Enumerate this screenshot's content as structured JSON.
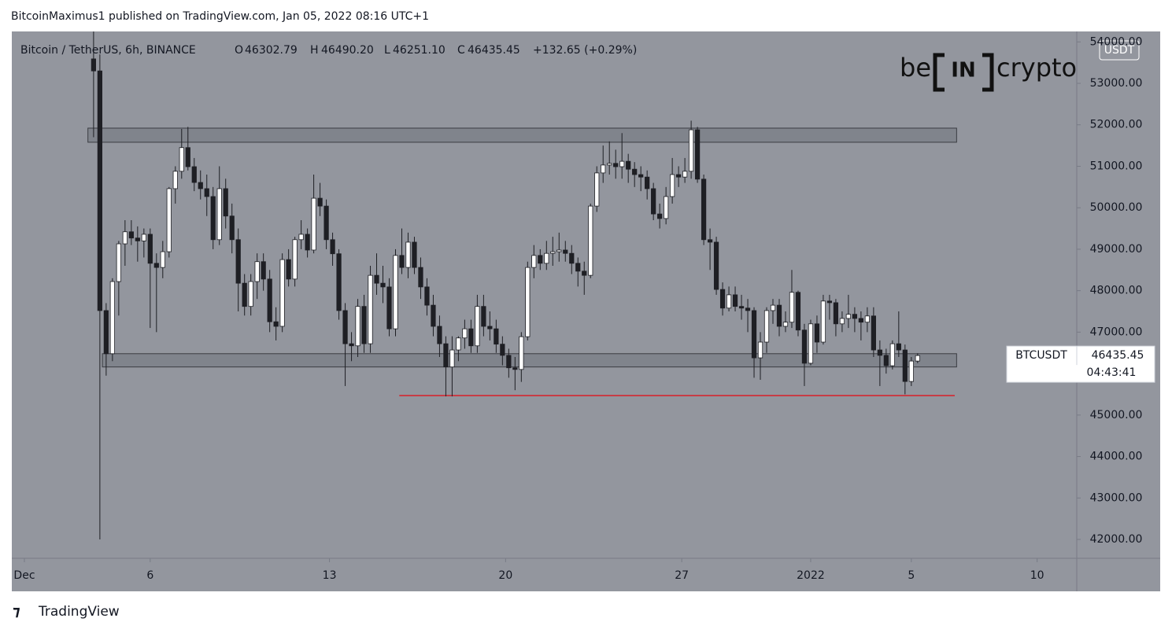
{
  "header": {
    "publisher": "BitcoinMaximus1 published on TradingView.com, Jan 05, 2022 08:16 UTC+1"
  },
  "footer": {
    "brand": "TradingView"
  },
  "logo": {
    "left": "be",
    "middle": "IN",
    "right": "crypto"
  },
  "chart_data": {
    "type": "candlestick",
    "symbol": "Bitcoin / TetherUS, 6h, BINANCE",
    "legend": {
      "o_key": "O",
      "o": "46302.79",
      "h_key": "H",
      "h": "46490.20",
      "l_key": "L",
      "l": "46251.10",
      "c_key": "C",
      "c": "46435.45",
      "change": "+132.65 (+0.29%)"
    },
    "currency": "USDT",
    "price_tag": {
      "ticker": "BTCUSDT",
      "price": "46435.45",
      "countdown": "04:43:41"
    },
    "up_color": "#ffffff",
    "down_color": "#1e1f24",
    "wick_color": "#1e1f24",
    "ylim": [
      41545,
      54252
    ],
    "yticks": [
      {
        "value": 42000,
        "label": "42000.00"
      },
      {
        "value": 43000,
        "label": "43000.00"
      },
      {
        "value": 44000,
        "label": "44000.00"
      },
      {
        "value": 45000,
        "label": "45000.00"
      },
      {
        "value": 46000,
        "label": "46000.00"
      },
      {
        "value": 47000,
        "label": "47000.00"
      },
      {
        "value": 48000,
        "label": "48000.00"
      },
      {
        "value": 49000,
        "label": "49000.00"
      },
      {
        "value": 50000,
        "label": "50000.00"
      },
      {
        "value": 51000,
        "label": "51000.00"
      },
      {
        "value": 52000,
        "label": "52000.00"
      },
      {
        "value": 53000,
        "label": "53000.00"
      },
      {
        "value": 54000,
        "label": "54000.00"
      }
    ],
    "xlim": [
      -13,
      156.3
    ],
    "xticks": [
      {
        "value": -11,
        "label": "Dec"
      },
      {
        "value": 9,
        "label": "6"
      },
      {
        "value": 37.5,
        "label": "13"
      },
      {
        "value": 65.5,
        "label": "20"
      },
      {
        "value": 93.5,
        "label": "27"
      },
      {
        "value": 114,
        "label": "2022"
      },
      {
        "value": 130,
        "label": "5"
      },
      {
        "value": 150,
        "label": "10"
      }
    ],
    "zones": [
      {
        "low": 51580,
        "high": 51920,
        "start": -0.9,
        "end": 137.2,
        "color": "#6b6e76"
      },
      {
        "low": 46160,
        "high": 46480,
        "start": 1.4,
        "end": 137.2,
        "color": "#6b6e76"
      }
    ],
    "support_line": {
      "value": 45470,
      "start": 48.6,
      "end": 136.9,
      "color": "#e0141e"
    },
    "ohlc": [
      [
        53590,
        54250,
        51700,
        53300
      ],
      [
        53300,
        53700,
        42000,
        47520
      ],
      [
        47520,
        47700,
        45950,
        46480
      ],
      [
        46480,
        48300,
        46300,
        48220
      ],
      [
        48220,
        49200,
        47400,
        49130
      ],
      [
        49130,
        49700,
        48600,
        49420
      ],
      [
        49420,
        49700,
        49100,
        49270
      ],
      [
        49270,
        49550,
        48700,
        49200
      ],
      [
        49200,
        49500,
        48800,
        49360
      ],
      [
        49360,
        49500,
        47100,
        48660
      ],
      [
        48660,
        48900,
        47000,
        48560
      ],
      [
        48560,
        49200,
        48300,
        48940
      ],
      [
        48940,
        50500,
        48800,
        50460
      ],
      [
        50460,
        51000,
        50100,
        50880
      ],
      [
        50880,
        51900,
        50700,
        51450
      ],
      [
        51450,
        51950,
        50900,
        50990
      ],
      [
        50990,
        51200,
        50400,
        50610
      ],
      [
        50610,
        50900,
        50200,
        50460
      ],
      [
        50460,
        50800,
        49800,
        50270
      ],
      [
        50270,
        50500,
        49000,
        49230
      ],
      [
        49230,
        51000,
        49100,
        50460
      ],
      [
        50460,
        50700,
        49500,
        49800
      ],
      [
        49800,
        50100,
        48900,
        49230
      ],
      [
        49230,
        49500,
        47500,
        48180
      ],
      [
        48180,
        48400,
        47400,
        47620
      ],
      [
        47620,
        48400,
        47400,
        48220
      ],
      [
        48220,
        48900,
        47800,
        48700
      ],
      [
        48700,
        48900,
        48000,
        48280
      ],
      [
        48280,
        48500,
        47000,
        47250
      ],
      [
        47250,
        47600,
        46800,
        47140
      ],
      [
        47140,
        48900,
        47000,
        48750
      ],
      [
        48750,
        49000,
        48100,
        48280
      ],
      [
        48280,
        49300,
        48100,
        49230
      ],
      [
        49230,
        49700,
        49000,
        49360
      ],
      [
        49360,
        49500,
        48800,
        48980
      ],
      [
        48980,
        50800,
        48900,
        50230
      ],
      [
        50230,
        50600,
        49800,
        50040
      ],
      [
        50040,
        50200,
        49000,
        49230
      ],
      [
        49230,
        49400,
        48600,
        48890
      ],
      [
        48890,
        49000,
        47300,
        47520
      ],
      [
        47520,
        47700,
        45700,
        46720
      ],
      [
        46720,
        47000,
        46300,
        46670
      ],
      [
        46670,
        47800,
        46400,
        47620
      ],
      [
        47620,
        47900,
        46500,
        46720
      ],
      [
        46720,
        48600,
        46500,
        48370
      ],
      [
        48370,
        48900,
        47900,
        48180
      ],
      [
        48180,
        48600,
        47700,
        48090
      ],
      [
        48090,
        48300,
        46900,
        47080
      ],
      [
        47080,
        49000,
        46900,
        48850
      ],
      [
        48850,
        49500,
        48400,
        48560
      ],
      [
        48560,
        49400,
        48300,
        49170
      ],
      [
        49170,
        49300,
        48400,
        48560
      ],
      [
        48560,
        48800,
        47800,
        48090
      ],
      [
        48090,
        48300,
        47400,
        47650
      ],
      [
        47650,
        47900,
        46900,
        47140
      ],
      [
        47140,
        47400,
        46400,
        46720
      ],
      [
        46720,
        46900,
        45450,
        46160
      ],
      [
        46160,
        46900,
        45450,
        46570
      ],
      [
        46570,
        46900,
        46300,
        46860
      ],
      [
        46860,
        47300,
        46600,
        47080
      ],
      [
        47080,
        47300,
        46500,
        46670
      ],
      [
        46670,
        47900,
        46500,
        47620
      ],
      [
        47620,
        47900,
        46900,
        47140
      ],
      [
        47140,
        47500,
        46800,
        47080
      ],
      [
        47080,
        47300,
        46500,
        46710
      ],
      [
        46710,
        46900,
        46200,
        46440
      ],
      [
        46440,
        46600,
        45900,
        46140
      ],
      [
        46140,
        46400,
        45600,
        46100
      ],
      [
        46100,
        47000,
        45800,
        46890
      ],
      [
        46890,
        48700,
        46800,
        48560
      ],
      [
        48560,
        49100,
        48300,
        48850
      ],
      [
        48850,
        49000,
        48500,
        48660
      ],
      [
        48660,
        49200,
        48500,
        48900
      ],
      [
        48900,
        49300,
        48600,
        48940
      ],
      [
        48940,
        49400,
        48700,
        48980
      ],
      [
        48980,
        49200,
        48700,
        48900
      ],
      [
        48900,
        49100,
        48400,
        48660
      ],
      [
        48660,
        48800,
        48100,
        48470
      ],
      [
        48470,
        48700,
        47900,
        48370
      ],
      [
        48370,
        50100,
        48300,
        50040
      ],
      [
        50040,
        51000,
        49900,
        50840
      ],
      [
        50840,
        51500,
        50600,
        51030
      ],
      [
        51030,
        51600,
        50800,
        51070
      ],
      [
        51070,
        51400,
        50700,
        50990
      ],
      [
        50990,
        51800,
        50700,
        51120
      ],
      [
        51120,
        51300,
        50600,
        50930
      ],
      [
        50930,
        51100,
        50500,
        50800
      ],
      [
        50800,
        51000,
        50400,
        50740
      ],
      [
        50740,
        50900,
        50200,
        50460
      ],
      [
        50460,
        50600,
        49700,
        49850
      ],
      [
        49850,
        50100,
        49500,
        49740
      ],
      [
        49740,
        50500,
        49600,
        50270
      ],
      [
        50270,
        51200,
        50100,
        50800
      ],
      [
        50800,
        51000,
        50500,
        50740
      ],
      [
        50740,
        51200,
        50600,
        50880
      ],
      [
        50880,
        52100,
        50700,
        51880
      ],
      [
        51880,
        51950,
        50600,
        50690
      ],
      [
        50690,
        50800,
        49100,
        49230
      ],
      [
        49230,
        49500,
        48500,
        49170
      ],
      [
        49170,
        49300,
        47900,
        48030
      ],
      [
        48030,
        48200,
        47400,
        47580
      ],
      [
        47580,
        48100,
        47500,
        47900
      ],
      [
        47900,
        48100,
        47500,
        47620
      ],
      [
        47620,
        47900,
        47300,
        47580
      ],
      [
        47580,
        47800,
        47000,
        47520
      ],
      [
        47520,
        47600,
        45900,
        46380
      ],
      [
        46380,
        47000,
        45850,
        46760
      ],
      [
        46760,
        47600,
        46500,
        47520
      ],
      [
        47520,
        47800,
        47200,
        47650
      ],
      [
        47650,
        47800,
        46900,
        47140
      ],
      [
        47140,
        47500,
        47000,
        47240
      ],
      [
        47240,
        48500,
        47100,
        47960
      ],
      [
        47960,
        48000,
        46900,
        47050
      ],
      [
        47050,
        47200,
        45700,
        46250
      ],
      [
        46250,
        47300,
        46200,
        47200
      ],
      [
        47200,
        47400,
        46500,
        46760
      ],
      [
        46760,
        47900,
        46700,
        47750
      ],
      [
        47750,
        47900,
        47300,
        47710
      ],
      [
        47710,
        47800,
        46900,
        47200
      ],
      [
        47200,
        47500,
        47000,
        47330
      ],
      [
        47330,
        47900,
        47100,
        47430
      ],
      [
        47430,
        47600,
        47000,
        47330
      ],
      [
        47330,
        47500,
        46800,
        47240
      ],
      [
        47240,
        47600,
        47000,
        47390
      ],
      [
        47390,
        47600,
        46400,
        46570
      ],
      [
        46570,
        46800,
        45700,
        46440
      ],
      [
        46440,
        46600,
        46000,
        46190
      ],
      [
        46190,
        46800,
        46100,
        46720
      ],
      [
        46720,
        47500,
        46400,
        46570
      ],
      [
        46570,
        46700,
        45500,
        45810
      ],
      [
        45810,
        46400,
        45700,
        46302.79
      ],
      [
        46302.79,
        46490.2,
        46251.1,
        46435.45
      ]
    ]
  }
}
